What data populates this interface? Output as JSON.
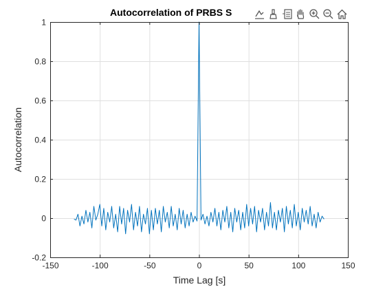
{
  "toolbar": {
    "icons": [
      "data-tips-icon",
      "brush-icon",
      "legend-export-icon",
      "pan-icon",
      "zoom-in-icon",
      "zoom-out-icon",
      "home-icon"
    ]
  },
  "chart_data": {
    "type": "line",
    "title": "Autocorrelation of PRBS S",
    "xlabel": "Time Lag [s]",
    "ylabel": "Autocorrelation",
    "xlim": [
      -150,
      150
    ],
    "ylim": [
      -0.2,
      1
    ],
    "xticks": [
      -150,
      -100,
      -50,
      0,
      50,
      100,
      150
    ],
    "yticks": [
      -0.2,
      0,
      0.2,
      0.4,
      0.6,
      0.8,
      1
    ],
    "grid": true,
    "line_color": "#0072BD",
    "series": [
      {
        "x": [
          -126,
          -124,
          -122,
          -120,
          -118,
          -116,
          -114,
          -112,
          -110,
          -108,
          -106,
          -104,
          -102,
          -100,
          -98,
          -96,
          -94,
          -92,
          -90,
          -88,
          -86,
          -84,
          -82,
          -80,
          -78,
          -76,
          -74,
          -72,
          -70,
          -68,
          -66,
          -64,
          -62,
          -60,
          -58,
          -56,
          -54,
          -52,
          -50,
          -48,
          -46,
          -44,
          -42,
          -40,
          -38,
          -36,
          -34,
          -32,
          -30,
          -28,
          -26,
          -24,
          -22,
          -20,
          -18,
          -16,
          -14,
          -12,
          -10,
          -8,
          -6,
          -4,
          -2,
          -1,
          0,
          1,
          2,
          4,
          6,
          8,
          10,
          12,
          14,
          16,
          18,
          20,
          22,
          24,
          26,
          28,
          30,
          32,
          34,
          36,
          38,
          40,
          42,
          44,
          46,
          48,
          50,
          52,
          54,
          56,
          58,
          60,
          62,
          64,
          66,
          68,
          70,
          72,
          74,
          76,
          78,
          80,
          82,
          84,
          86,
          88,
          90,
          92,
          94,
          96,
          98,
          100,
          102,
          104,
          106,
          108,
          110,
          112,
          114,
          116,
          118,
          120,
          122,
          124,
          126
        ],
        "y": [
          -0.005,
          -0.01,
          0.02,
          -0.04,
          0.01,
          -0.03,
          0.04,
          -0.02,
          0.03,
          -0.05,
          0.06,
          -0.01,
          0.02,
          0.07,
          -0.04,
          0.05,
          -0.06,
          0.03,
          -0.02,
          0.06,
          -0.05,
          0.02,
          -0.07,
          0.06,
          -0.03,
          0.05,
          -0.08,
          0.04,
          -0.02,
          0.07,
          -0.06,
          0.03,
          -0.04,
          0.06,
          -0.07,
          0.02,
          -0.03,
          0.05,
          -0.08,
          0.04,
          -0.06,
          0.05,
          -0.03,
          0.04,
          -0.07,
          0.06,
          -0.02,
          0.03,
          -0.05,
          0.06,
          -0.04,
          0.02,
          -0.06,
          0.05,
          -0.03,
          0.04,
          -0.05,
          0.02,
          -0.04,
          0.03,
          -0.02,
          0.01,
          -0.015,
          0.5,
          1,
          0.5,
          -0.01,
          0.02,
          -0.03,
          0.01,
          -0.04,
          0.03,
          -0.02,
          0.05,
          -0.04,
          0.03,
          -0.06,
          0.04,
          -0.02,
          0.06,
          -0.05,
          0.03,
          -0.07,
          0.05,
          -0.02,
          0.04,
          -0.06,
          0.03,
          -0.05,
          0.07,
          -0.04,
          0.05,
          -0.03,
          0.06,
          -0.07,
          0.04,
          -0.02,
          0.05,
          -0.06,
          0.03,
          -0.04,
          0.08,
          -0.05,
          0.03,
          -0.06,
          0.04,
          -0.02,
          0.05,
          -0.07,
          0.06,
          -0.03,
          0.04,
          -0.05,
          0.07,
          -0.04,
          0.03,
          -0.06,
          0.05,
          -0.02,
          0.04,
          -0.03,
          0.06,
          -0.04,
          0.02,
          -0.05,
          0.03,
          -0.02,
          0.01,
          -0.005
        ]
      }
    ]
  }
}
